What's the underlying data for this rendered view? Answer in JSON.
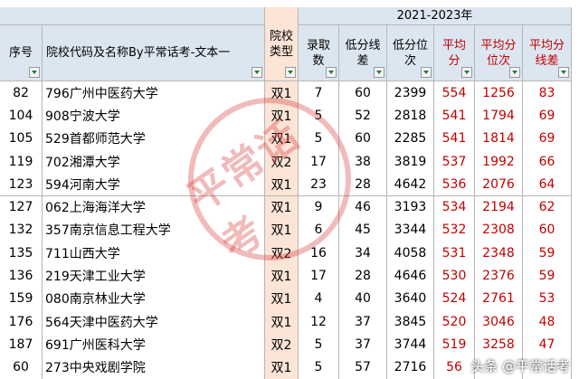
{
  "sheet": {
    "group_header": "2021-2023年",
    "headers": [
      [
        "序号"
      ],
      [
        "院校代码及名称By平常话考-文本一"
      ],
      [
        "院校",
        "类型"
      ],
      [
        "录取",
        "数"
      ],
      [
        "低分线",
        "差"
      ],
      [
        "低分位",
        "次"
      ],
      [
        "平均",
        "分"
      ],
      [
        "平均分",
        "位次"
      ],
      [
        "平均分",
        "线差"
      ]
    ],
    "rows": [
      [
        82,
        "796广州中医药大学",
        "双1",
        7,
        60,
        2399,
        554,
        1256,
        83
      ],
      [
        104,
        "908宁波大学",
        "双1",
        5,
        52,
        2818,
        541,
        1794,
        69
      ],
      [
        105,
        "529首都师范大学",
        "双1",
        5,
        60,
        2285,
        541,
        1814,
        69
      ],
      [
        119,
        "702湘潭大学",
        "双2",
        17,
        38,
        3819,
        537,
        1992,
        66
      ],
      [
        123,
        "594河南大学",
        "双1",
        23,
        28,
        4642,
        536,
        2076,
        64
      ],
      [
        127,
        "062上海海洋大学",
        "双1",
        9,
        46,
        3193,
        534,
        2194,
        62
      ],
      [
        132,
        "357南京信息工程大学",
        "双1",
        6,
        45,
        3344,
        532,
        2308,
        60
      ],
      [
        135,
        "711山西大学",
        "双2",
        16,
        34,
        4058,
        531,
        2348,
        59
      ],
      [
        136,
        "219天津工业大学",
        "双1",
        17,
        28,
        4646,
        530,
        2376,
        59
      ],
      [
        159,
        "080南京林业大学",
        "双1",
        4,
        40,
        3640,
        524,
        2761,
        53
      ],
      [
        176,
        "564天津中医药大学",
        "双1",
        12,
        37,
        3845,
        520,
        3046,
        48
      ],
      [
        187,
        "691广州医科大学",
        "双2",
        5,
        37,
        3744,
        519,
        3258,
        47
      ],
      [
        60,
        "273中央戏剧学院",
        "双1",
        5,
        57,
        2716,
        56,
        null,
        null
      ]
    ],
    "stamp": "平常话考",
    "watermark": "头条 @平常话考"
  }
}
